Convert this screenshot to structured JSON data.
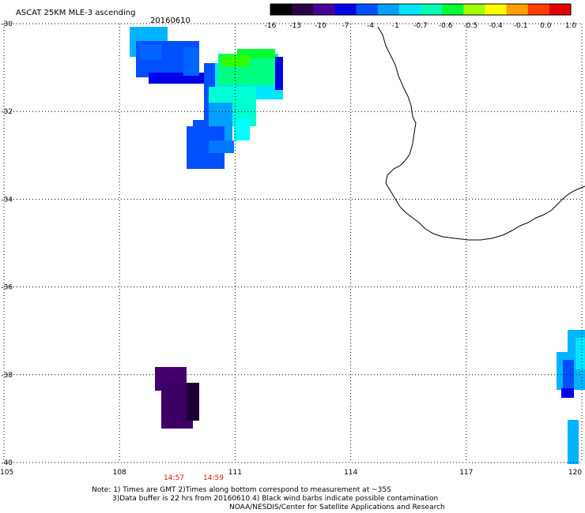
{
  "header": {
    "title": "ASCAT 25KM MLE-3 ascending",
    "date": "20160610"
  },
  "colorbar": {
    "labels": [
      "-16",
      "-13",
      "-10",
      "-7",
      "-4",
      "-1",
      "-0.7",
      "-0.6",
      "-0.5",
      "-0.4",
      "-0.1",
      "0.0",
      "1.0"
    ],
    "colors": [
      "#000000",
      "#2a0046",
      "#4b0096",
      "#0000e6",
      "#0050ff",
      "#00a0ff",
      "#00e6ff",
      "#00ffb4",
      "#00ff32",
      "#a0ff00",
      "#ffff00",
      "#ffa000",
      "#ff3c00",
      "#e60000"
    ]
  },
  "axes": {
    "lon_ticks": [
      "105",
      "108",
      "111",
      "114",
      "117",
      "120"
    ],
    "lat_ticks": [
      "-30",
      "-32",
      "-34",
      "-36",
      "-38",
      "-40"
    ],
    "lon_range": [
      105,
      120
    ],
    "lat_range": [
      -30,
      -40
    ]
  },
  "times": [
    "14:57",
    "14:59"
  ],
  "notes": {
    "line1": "Note: 1) Times are GMT 2)Times along bottom correspond to measurement at ~35S",
    "line2": "3)Data buffer is 22 hrs from 20160610 4) Black wind barbs indicate possible contamination",
    "line3": "NOAA/NESDIS/Center for Satellite Applications and Research"
  }
}
